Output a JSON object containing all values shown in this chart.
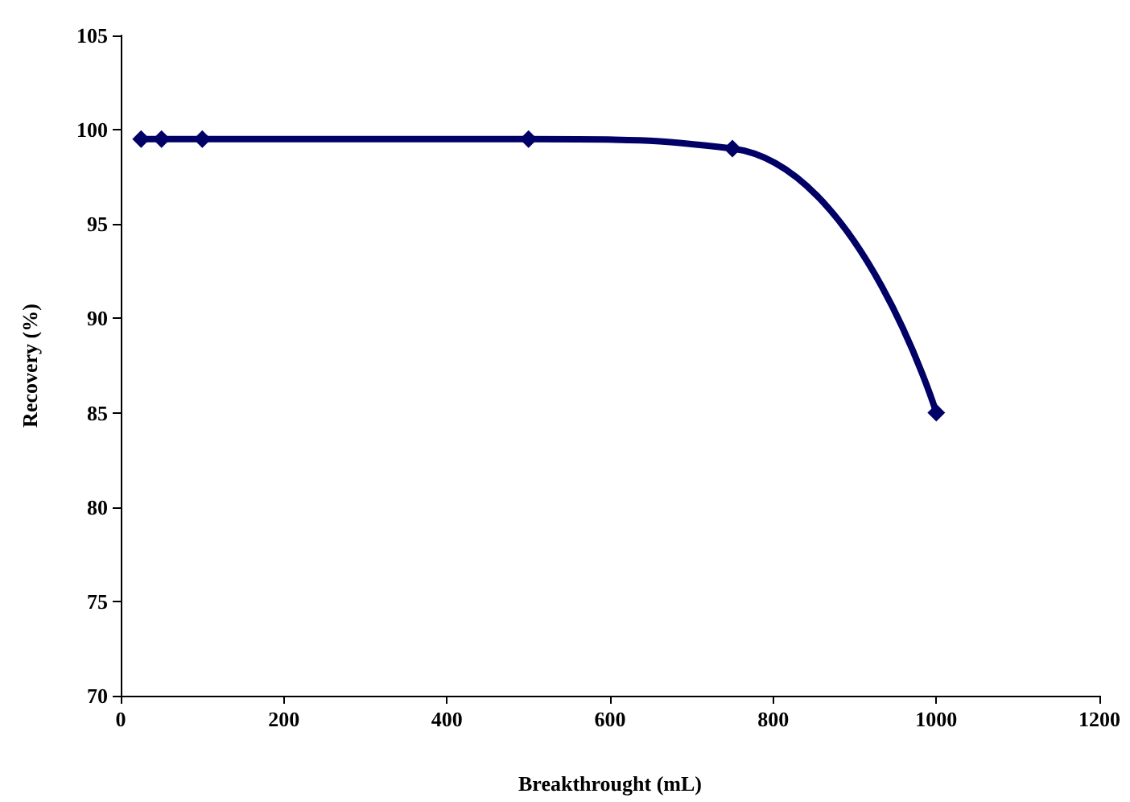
{
  "chart_data": {
    "type": "line",
    "xlabel": "Breakthrought (mL)",
    "ylabel": "Recovery (%)",
    "x": [
      25,
      50,
      100,
      500,
      750,
      1000
    ],
    "series": [
      {
        "color": "#000066",
        "values": [
          99.5,
          99.5,
          99.5,
          99.5,
          99,
          85
        ]
      }
    ],
    "xlim": [
      0,
      1200
    ],
    "xticks": [
      0,
      200,
      400,
      600,
      800,
      1000,
      1200
    ],
    "ylim": [
      70,
      105
    ],
    "yticks": [
      70,
      75,
      80,
      85,
      90,
      95,
      100,
      105
    ],
    "marker": "diamond",
    "line_style": "solid"
  }
}
